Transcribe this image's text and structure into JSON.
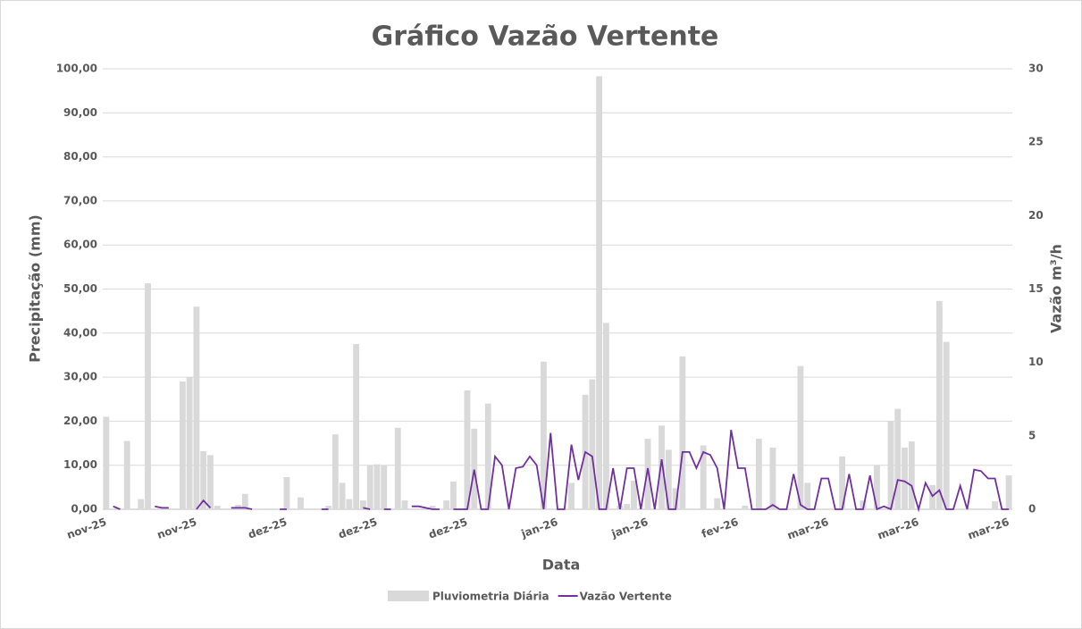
{
  "chart_data": {
    "type": "bar-line",
    "title": "Gráfico Vazão Vertente",
    "x_label": "Data",
    "y_label": "Precipitação (mm)",
    "y2_label": "Vazão m³/h",
    "categories": [
      "nov-25",
      null,
      null,
      null,
      null,
      null,
      null,
      null,
      null,
      null,
      null,
      null,
      null,
      "nov-25",
      null,
      null,
      null,
      null,
      null,
      null,
      null,
      null,
      null,
      null,
      null,
      null,
      "dez-25",
      null,
      null,
      null,
      null,
      null,
      null,
      null,
      null,
      null,
      null,
      null,
      null,
      "dez-25",
      null,
      null,
      null,
      null,
      null,
      null,
      null,
      null,
      null,
      null,
      null,
      null,
      "dez-25",
      null,
      null,
      null,
      null,
      null,
      null,
      null,
      null,
      null,
      null,
      null,
      null,
      "jan-26",
      null,
      null,
      null,
      null,
      null,
      null,
      null,
      null,
      null,
      null,
      null,
      null,
      "jan-26",
      null,
      null,
      null,
      null,
      null,
      null,
      null,
      null,
      null,
      null,
      null,
      null,
      "fev-26",
      null,
      null,
      null,
      null,
      null,
      null,
      null,
      null,
      null,
      null,
      null,
      null,
      "mar-26",
      null,
      null,
      null,
      null,
      null,
      null,
      null,
      null,
      null,
      null,
      null,
      null,
      "mar-26",
      null,
      null,
      null,
      null,
      null,
      null,
      null,
      null,
      null,
      null,
      null,
      null,
      "mar-26"
    ],
    "series": [
      {
        "name": "Pluviometria Diária",
        "kind": "bar",
        "color": "#d9d9d9",
        "axis": "y",
        "values": [
          21,
          0,
          0,
          15.5,
          0,
          2.3,
          51.3,
          0,
          0,
          0,
          0,
          29,
          30,
          46,
          13.2,
          12.3,
          0.8,
          0,
          0,
          1,
          3.5,
          0,
          0,
          0,
          0,
          0,
          7.3,
          0,
          2.7,
          0,
          0,
          0,
          0.8,
          17,
          6,
          2.3,
          37.5,
          2,
          10,
          10.2,
          10,
          0,
          18.5,
          2,
          0,
          0,
          0,
          0.8,
          0,
          2,
          6.3,
          0,
          27,
          18.3,
          0,
          24,
          0,
          0,
          0,
          0,
          0,
          0,
          0,
          33.5,
          0,
          0,
          0,
          6,
          0,
          26,
          29.5,
          98.3,
          42.3,
          0,
          0.8,
          1.2,
          6.5,
          0,
          16,
          0,
          19,
          13.5,
          4.8,
          34.7,
          0,
          0,
          14.5,
          0,
          2.5,
          0,
          0,
          0,
          0.8,
          0,
          16,
          0,
          14,
          0,
          0,
          0,
          32.5,
          6,
          0,
          0,
          0,
          0,
          12,
          0,
          0,
          2,
          0,
          10,
          0,
          20,
          22.8,
          14,
          15.4,
          0,
          0,
          5.5,
          47.3,
          38,
          0,
          0,
          0,
          0,
          0,
          0,
          1.8,
          0,
          7.7
        ]
      },
      {
        "name": "Vazão Vertente",
        "kind": "line",
        "color": "#7030a0",
        "axis": "y2",
        "values": [
          null,
          0.2,
          0,
          null,
          null,
          null,
          null,
          0.2,
          0.1,
          0.1,
          null,
          null,
          null,
          0,
          0.6,
          0.1,
          null,
          null,
          0.1,
          0.1,
          0.1,
          0,
          null,
          null,
          null,
          0,
          0,
          null,
          null,
          null,
          null,
          0,
          0,
          null,
          null,
          null,
          null,
          0.1,
          0,
          null,
          0,
          0,
          null,
          null,
          0.2,
          0.2,
          0.1,
          0,
          0,
          null,
          0,
          0,
          0,
          2.7,
          0,
          0,
          3.6,
          3,
          0,
          2.8,
          2.9,
          3.6,
          3,
          0,
          5.2,
          0,
          0,
          4.4,
          2,
          3.9,
          3.6,
          0,
          0,
          2.8,
          0,
          2.8,
          2.8,
          0,
          2.8,
          0,
          3.4,
          0,
          0,
          3.9,
          3.9,
          2.8,
          3.9,
          3.7,
          2.8,
          0,
          5.4,
          2.8,
          2.8,
          0,
          0,
          0,
          0.3,
          0,
          0,
          2.4,
          0.3,
          0,
          0,
          2.1,
          2.1,
          0,
          0,
          2.4,
          0,
          0,
          2.3,
          0,
          0.2,
          0,
          2,
          1.9,
          1.6,
          0,
          1.8,
          0.9,
          1.3,
          0,
          0,
          1.6,
          0,
          2.7,
          2.6,
          2.1,
          2.1,
          0,
          0
        ]
      }
    ],
    "ylim": [
      0,
      100
    ],
    "yticks": [
      {
        "value": 0,
        "label": "0,00"
      },
      {
        "value": 10,
        "label": "10,00"
      },
      {
        "value": 20,
        "label": "20,00"
      },
      {
        "value": 30,
        "label": "30,00"
      },
      {
        "value": 40,
        "label": "40,00"
      },
      {
        "value": 50,
        "label": "50,00"
      },
      {
        "value": 60,
        "label": "60,00"
      },
      {
        "value": 70,
        "label": "70,00"
      },
      {
        "value": 80,
        "label": "80,00"
      },
      {
        "value": 90,
        "label": "90,00"
      },
      {
        "value": 100,
        "label": "100,00"
      }
    ],
    "y2lim": [
      0,
      30
    ],
    "y2ticks": [
      0,
      5,
      10,
      15,
      20,
      25,
      30
    ],
    "grid": true,
    "legend": "bottom"
  }
}
